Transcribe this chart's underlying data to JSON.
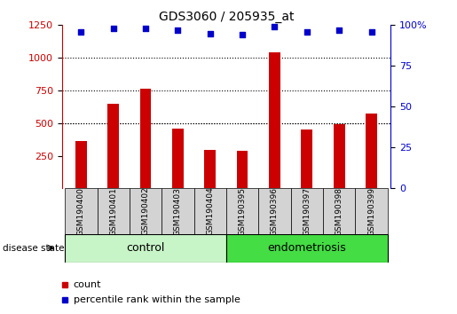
{
  "title": "GDS3060 / 205935_at",
  "samples": [
    "GSM190400",
    "GSM190401",
    "GSM190402",
    "GSM190403",
    "GSM190404",
    "GSM190395",
    "GSM190396",
    "GSM190397",
    "GSM190398",
    "GSM190399"
  ],
  "counts": [
    360,
    650,
    760,
    460,
    295,
    285,
    1040,
    450,
    490,
    570
  ],
  "percentiles": [
    96,
    98,
    98,
    97,
    95,
    94,
    99,
    96,
    97,
    96
  ],
  "group_colors_control": "#c8f5c8",
  "group_colors_endo": "#44dd44",
  "bar_color": "#CC0000",
  "dot_color": "#0000CC",
  "ylim_left": [
    0,
    1250
  ],
  "ylim_right": [
    0,
    100
  ],
  "yticks_left": [
    250,
    500,
    750,
    1000,
    1250
  ],
  "yticks_right": [
    0,
    25,
    50,
    75,
    100
  ],
  "grid_values": [
    500,
    750,
    1000
  ],
  "tick_color_left": "#CC0000",
  "tick_color_right": "#0000CC",
  "label_bg": "#D3D3D3",
  "n_control": 5,
  "n_endo": 5
}
